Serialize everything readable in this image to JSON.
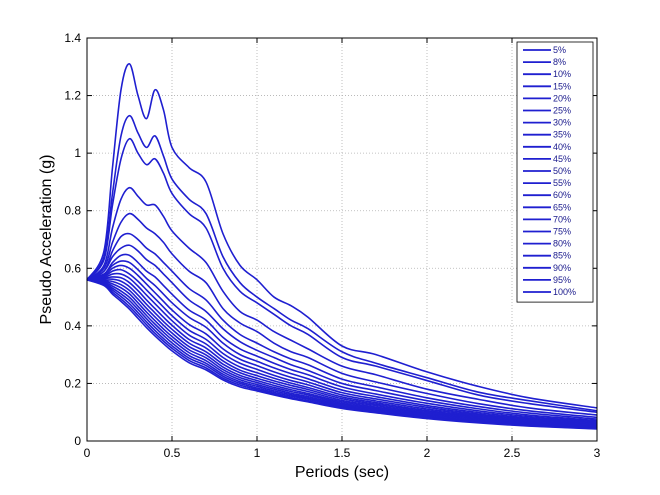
{
  "chart_data": {
    "type": "line",
    "title": "",
    "xlabel": "Periods (sec)",
    "ylabel": "Pseudo Acceleration (g)",
    "xlim": [
      0,
      3
    ],
    "ylim": [
      0,
      1.4
    ],
    "xticks": [
      "0",
      "0.5",
      "1",
      "1.5",
      "2",
      "2.5",
      "3"
    ],
    "yticks": [
      "0",
      "0.2",
      "0.4",
      "0.6",
      "0.8",
      "1",
      "1.2",
      "1.4"
    ],
    "grid": true,
    "legend_position": "top-right",
    "line_color": "#1f1fd0",
    "x": [
      0.0,
      0.1,
      0.15,
      0.2,
      0.25,
      0.3,
      0.35,
      0.4,
      0.45,
      0.5,
      0.6,
      0.7,
      0.8,
      0.9,
      1.0,
      1.1,
      1.2,
      1.3,
      1.5,
      1.7,
      2.0,
      2.3,
      2.6,
      3.0
    ],
    "series": [
      {
        "name": "5%",
        "values": [
          0.56,
          0.66,
          0.95,
          1.22,
          1.31,
          1.2,
          1.12,
          1.22,
          1.15,
          1.02,
          0.95,
          0.9,
          0.72,
          0.61,
          0.56,
          0.5,
          0.47,
          0.43,
          0.33,
          0.3,
          0.24,
          0.19,
          0.15,
          0.115
        ]
      },
      {
        "name": "8%",
        "values": [
          0.56,
          0.64,
          0.86,
          1.06,
          1.13,
          1.07,
          1.02,
          1.06,
          0.99,
          0.91,
          0.84,
          0.79,
          0.64,
          0.55,
          0.5,
          0.46,
          0.42,
          0.39,
          0.31,
          0.27,
          0.22,
          0.17,
          0.14,
          0.105
        ]
      },
      {
        "name": "10%",
        "values": [
          0.56,
          0.63,
          0.82,
          0.98,
          1.05,
          1.0,
          0.96,
          0.98,
          0.93,
          0.86,
          0.79,
          0.74,
          0.6,
          0.52,
          0.48,
          0.44,
          0.4,
          0.37,
          0.29,
          0.26,
          0.21,
          0.16,
          0.13,
          0.1
        ]
      },
      {
        "name": "15%",
        "values": [
          0.56,
          0.61,
          0.74,
          0.84,
          0.88,
          0.85,
          0.82,
          0.82,
          0.78,
          0.73,
          0.67,
          0.62,
          0.52,
          0.45,
          0.42,
          0.38,
          0.35,
          0.32,
          0.26,
          0.23,
          0.18,
          0.145,
          0.115,
          0.09
        ]
      },
      {
        "name": "20%",
        "values": [
          0.56,
          0.6,
          0.69,
          0.76,
          0.79,
          0.77,
          0.74,
          0.72,
          0.69,
          0.65,
          0.59,
          0.55,
          0.46,
          0.41,
          0.38,
          0.34,
          0.31,
          0.29,
          0.235,
          0.205,
          0.165,
          0.13,
          0.105,
          0.082
        ]
      },
      {
        "name": "25%",
        "values": [
          0.56,
          0.59,
          0.66,
          0.71,
          0.72,
          0.7,
          0.67,
          0.65,
          0.62,
          0.59,
          0.53,
          0.49,
          0.42,
          0.37,
          0.34,
          0.31,
          0.285,
          0.265,
          0.215,
          0.188,
          0.15,
          0.12,
          0.097,
          0.076
        ]
      },
      {
        "name": "30%",
        "values": [
          0.56,
          0.59,
          0.64,
          0.67,
          0.68,
          0.66,
          0.63,
          0.61,
          0.58,
          0.55,
          0.49,
          0.45,
          0.39,
          0.345,
          0.315,
          0.29,
          0.265,
          0.245,
          0.2,
          0.175,
          0.14,
          0.112,
          0.09,
          0.071
        ]
      },
      {
        "name": "35%",
        "values": [
          0.56,
          0.58,
          0.62,
          0.645,
          0.645,
          0.62,
          0.59,
          0.57,
          0.54,
          0.51,
          0.455,
          0.42,
          0.36,
          0.32,
          0.295,
          0.27,
          0.248,
          0.23,
          0.188,
          0.163,
          0.131,
          0.105,
          0.085,
          0.067
        ]
      },
      {
        "name": "40%",
        "values": [
          0.56,
          0.58,
          0.61,
          0.625,
          0.62,
          0.595,
          0.565,
          0.54,
          0.51,
          0.48,
          0.43,
          0.395,
          0.34,
          0.3,
          0.277,
          0.254,
          0.234,
          0.216,
          0.177,
          0.154,
          0.123,
          0.099,
          0.08,
          0.064
        ]
      },
      {
        "name": "45%",
        "values": [
          0.56,
          0.575,
          0.6,
          0.61,
          0.6,
          0.575,
          0.545,
          0.515,
          0.485,
          0.455,
          0.405,
          0.372,
          0.32,
          0.284,
          0.262,
          0.24,
          0.221,
          0.205,
          0.168,
          0.146,
          0.117,
          0.094,
          0.076,
          0.061
        ]
      },
      {
        "name": "50%",
        "values": [
          0.56,
          0.572,
          0.59,
          0.595,
          0.58,
          0.555,
          0.525,
          0.495,
          0.465,
          0.435,
          0.385,
          0.353,
          0.304,
          0.27,
          0.249,
          0.228,
          0.21,
          0.195,
          0.16,
          0.139,
          0.111,
          0.09,
          0.073,
          0.058
        ]
      },
      {
        "name": "55%",
        "values": [
          0.56,
          0.568,
          0.58,
          0.58,
          0.565,
          0.538,
          0.507,
          0.477,
          0.447,
          0.418,
          0.368,
          0.337,
          0.29,
          0.257,
          0.237,
          0.218,
          0.201,
          0.186,
          0.153,
          0.133,
          0.106,
          0.086,
          0.07,
          0.056
        ]
      },
      {
        "name": "60%",
        "values": [
          0.56,
          0.565,
          0.57,
          0.567,
          0.55,
          0.522,
          0.49,
          0.46,
          0.43,
          0.402,
          0.353,
          0.323,
          0.278,
          0.246,
          0.227,
          0.209,
          0.193,
          0.179,
          0.147,
          0.128,
          0.102,
          0.083,
          0.067,
          0.054
        ]
      },
      {
        "name": "65%",
        "values": [
          0.56,
          0.562,
          0.562,
          0.555,
          0.536,
          0.507,
          0.475,
          0.445,
          0.415,
          0.388,
          0.34,
          0.31,
          0.267,
          0.237,
          0.218,
          0.201,
          0.185,
          0.172,
          0.141,
          0.123,
          0.098,
          0.08,
          0.065,
          0.052
        ]
      },
      {
        "name": "70%",
        "values": [
          0.56,
          0.558,
          0.554,
          0.543,
          0.523,
          0.493,
          0.461,
          0.431,
          0.402,
          0.375,
          0.328,
          0.299,
          0.257,
          0.228,
          0.21,
          0.193,
          0.178,
          0.165,
          0.136,
          0.118,
          0.094,
          0.077,
          0.062,
          0.05
        ]
      },
      {
        "name": "75%",
        "values": [
          0.56,
          0.555,
          0.546,
          0.532,
          0.511,
          0.48,
          0.448,
          0.418,
          0.389,
          0.363,
          0.317,
          0.289,
          0.248,
          0.22,
          0.203,
          0.186,
          0.172,
          0.16,
          0.131,
          0.114,
          0.091,
          0.074,
          0.06,
          0.048
        ]
      },
      {
        "name": "80%",
        "values": [
          0.56,
          0.552,
          0.538,
          0.521,
          0.499,
          0.468,
          0.436,
          0.406,
          0.378,
          0.352,
          0.307,
          0.279,
          0.24,
          0.213,
          0.196,
          0.18,
          0.166,
          0.154,
          0.127,
          0.11,
          0.088,
          0.072,
          0.058,
          0.047
        ]
      },
      {
        "name": "85%",
        "values": [
          0.56,
          0.549,
          0.531,
          0.511,
          0.488,
          0.457,
          0.425,
          0.395,
          0.367,
          0.341,
          0.297,
          0.27,
          0.232,
          0.206,
          0.19,
          0.174,
          0.161,
          0.149,
          0.123,
          0.107,
          0.085,
          0.069,
          0.056,
          0.045
        ]
      },
      {
        "name": "90%",
        "values": [
          0.56,
          0.546,
          0.524,
          0.502,
          0.477,
          0.446,
          0.414,
          0.384,
          0.356,
          0.331,
          0.288,
          0.262,
          0.225,
          0.2,
          0.184,
          0.169,
          0.156,
          0.145,
          0.119,
          0.104,
          0.083,
          0.067,
          0.055,
          0.044
        ]
      },
      {
        "name": "95%",
        "values": [
          0.56,
          0.543,
          0.517,
          0.493,
          0.467,
          0.436,
          0.404,
          0.374,
          0.347,
          0.322,
          0.28,
          0.254,
          0.218,
          0.194,
          0.179,
          0.164,
          0.151,
          0.14,
          0.116,
          0.101,
          0.08,
          0.065,
          0.053,
          0.043
        ]
      },
      {
        "name": "100%",
        "values": [
          0.56,
          0.54,
          0.51,
          0.485,
          0.458,
          0.426,
          0.394,
          0.365,
          0.338,
          0.313,
          0.272,
          0.247,
          0.212,
          0.188,
          0.174,
          0.16,
          0.147,
          0.136,
          0.113,
          0.098,
          0.078,
          0.063,
          0.052,
          0.042
        ]
      }
    ]
  }
}
